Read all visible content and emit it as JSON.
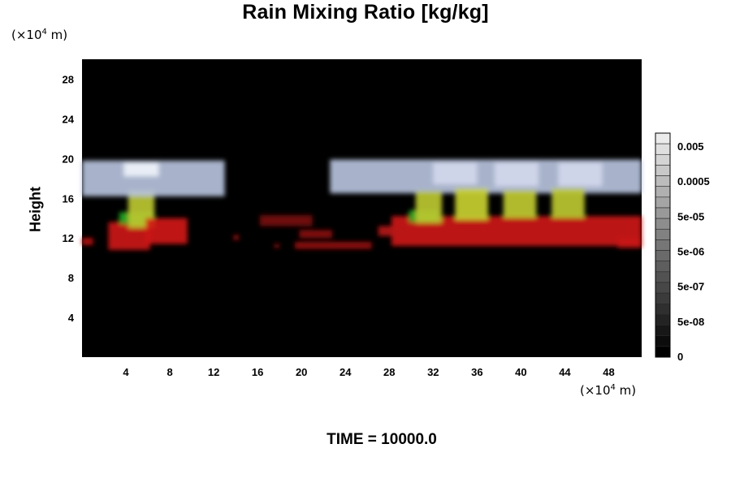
{
  "chart_data": {
    "type": "heatmap",
    "title": "Rain Mixing Ratio [kg/kg]",
    "ylabel": "Height",
    "xlabel": "",
    "x_unit": {
      "prefix": "(×10",
      "exp": "4",
      "suffix": " m)"
    },
    "y_unit": {
      "prefix": "(×10",
      "exp": "4",
      "suffix": " m)"
    },
    "x_ticks": [
      4,
      8,
      12,
      16,
      20,
      24,
      28,
      32,
      36,
      40,
      44,
      48
    ],
    "y_ticks": [
      4,
      8,
      12,
      16,
      20,
      24,
      28
    ],
    "xlim": [
      0,
      51
    ],
    "ylim": [
      0,
      30
    ],
    "colorbar": {
      "labels": [
        "0.005",
        "0.0005",
        "5e-05",
        "5e-06",
        "5e-07",
        "5e-08",
        "0"
      ],
      "levels": 21
    },
    "cells": [
      {
        "x": 0.0,
        "y": 11.3,
        "w": 1.0,
        "h": 0.7,
        "value": 5e-07,
        "color": "#c01010"
      },
      {
        "x": 2.4,
        "y": 10.8,
        "w": 3.8,
        "h": 2.8,
        "value": 5e-07,
        "color": "#cc1414"
      },
      {
        "x": 3.4,
        "y": 13.4,
        "w": 3.2,
        "h": 1.2,
        "value": 5e-06,
        "color": "#22aa22"
      },
      {
        "x": 4.2,
        "y": 13.0,
        "w": 2.4,
        "h": 3.8,
        "value": 5e-05,
        "color": "#bcc830"
      },
      {
        "x": 5.8,
        "y": 11.4,
        "w": 3.8,
        "h": 2.6,
        "value": 5e-07,
        "color": "#d01818"
      },
      {
        "x": 0.0,
        "y": 16.2,
        "w": 13.0,
        "h": 3.6,
        "value": 0.0005,
        "color": "#b6c2dc"
      },
      {
        "x": 3.8,
        "y": 18.2,
        "w": 3.2,
        "h": 1.4,
        "value": 0.005,
        "color": "#eef2fa"
      },
      {
        "x": 13.8,
        "y": 11.8,
        "w": 0.5,
        "h": 0.5,
        "value": 5e-08,
        "color": "#a01010"
      },
      {
        "x": 16.2,
        "y": 13.2,
        "w": 4.8,
        "h": 1.1,
        "value": 5e-08,
        "color": "#7a1010"
      },
      {
        "x": 17.5,
        "y": 11.0,
        "w": 0.5,
        "h": 0.4,
        "value": 5e-08,
        "color": "#901010"
      },
      {
        "x": 19.4,
        "y": 10.9,
        "w": 7.0,
        "h": 0.7,
        "value": 5e-08,
        "color": "#9a1010"
      },
      {
        "x": 19.8,
        "y": 12.0,
        "w": 3.0,
        "h": 0.8,
        "value": 5e-08,
        "color": "#8e1010"
      },
      {
        "x": 22.6,
        "y": 16.5,
        "w": 28.4,
        "h": 3.4,
        "value": 0.0005,
        "color": "#b6c2dc"
      },
      {
        "x": 28.2,
        "y": 11.2,
        "w": 22.8,
        "h": 3.0,
        "value": 5e-07,
        "color": "#cc1414"
      },
      {
        "x": 27.0,
        "y": 12.2,
        "w": 2.4,
        "h": 1.0,
        "value": 5e-07,
        "color": "#b81414"
      },
      {
        "x": 29.8,
        "y": 13.6,
        "w": 2.6,
        "h": 1.2,
        "value": 5e-06,
        "color": "#22aa22"
      },
      {
        "x": 30.4,
        "y": 13.5,
        "w": 2.4,
        "h": 3.2,
        "value": 5e-05,
        "color": "#bcc830"
      },
      {
        "x": 34.0,
        "y": 13.8,
        "w": 3.0,
        "h": 3.2,
        "value": 5e-05,
        "color": "#c8d030"
      },
      {
        "x": 38.4,
        "y": 14.0,
        "w": 3.0,
        "h": 2.8,
        "value": 5e-05,
        "color": "#c0ca30"
      },
      {
        "x": 42.8,
        "y": 14.0,
        "w": 3.0,
        "h": 3.0,
        "value": 5e-05,
        "color": "#bcc830"
      },
      {
        "x": 32.0,
        "y": 17.4,
        "w": 4.0,
        "h": 2.2,
        "value": 0.005,
        "color": "#d2d8ec"
      },
      {
        "x": 37.6,
        "y": 17.2,
        "w": 4.0,
        "h": 2.4,
        "value": 0.005,
        "color": "#d2d8ec"
      },
      {
        "x": 43.4,
        "y": 17.2,
        "w": 4.0,
        "h": 2.4,
        "value": 0.005,
        "color": "#d2d8ec"
      },
      {
        "x": 48.8,
        "y": 11.0,
        "w": 2.2,
        "h": 1.0,
        "value": 5e-07,
        "color": "#c81414"
      }
    ]
  },
  "time_label": "TIME = 10000.0"
}
